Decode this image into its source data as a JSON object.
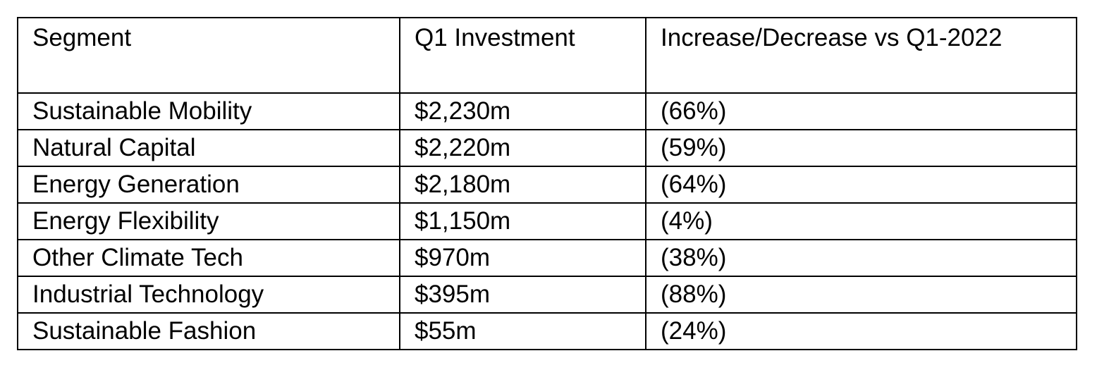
{
  "table": {
    "headers": [
      "Segment",
      "Q1 Investment",
      "Increase/Decrease vs Q1-2022"
    ],
    "rows": [
      [
        "Sustainable Mobility",
        "$2,230m",
        "(66%)"
      ],
      [
        "Natural Capital",
        "$2,220m",
        "(59%)"
      ],
      [
        "Energy Generation",
        "$2,180m",
        "(64%)"
      ],
      [
        "Energy Flexibility",
        "$1,150m",
        "(4%)"
      ],
      [
        "Other Climate Tech",
        "$970m",
        "(38%)"
      ],
      [
        "Industrial Technology",
        "$395m",
        "(88%)"
      ],
      [
        "Sustainable Fashion",
        "$55m",
        "(24%)"
      ]
    ]
  },
  "colors": {
    "text": "#000000",
    "border": "#000000",
    "background": "#ffffff"
  }
}
